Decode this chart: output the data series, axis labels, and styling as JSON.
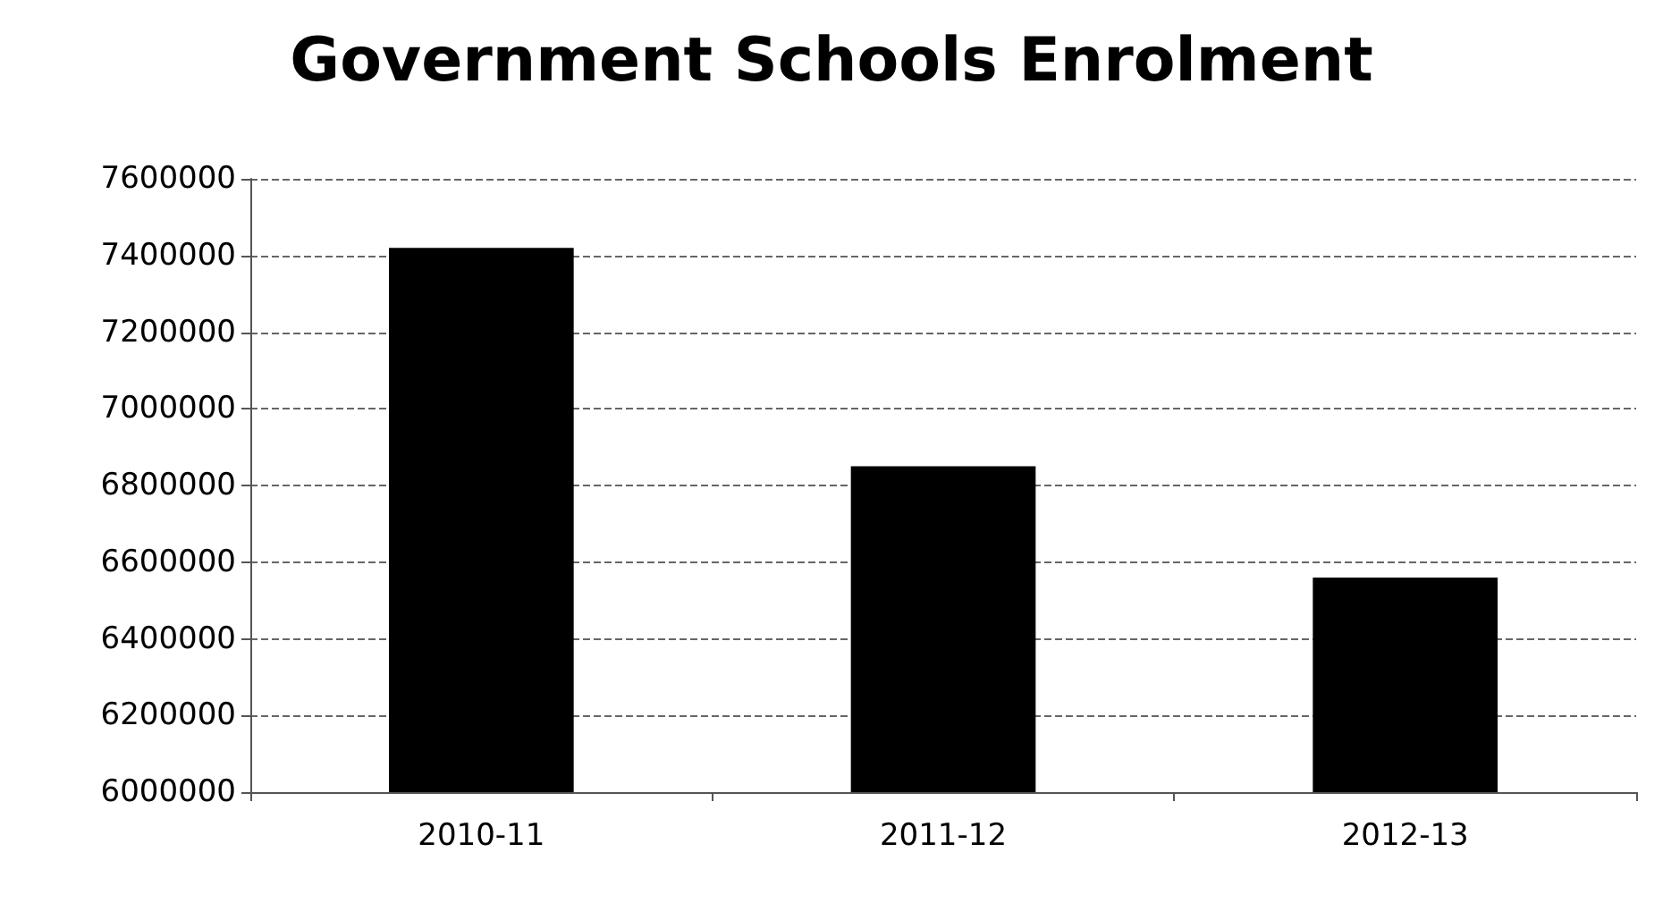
{
  "chart_data": {
    "type": "bar",
    "title": "Government Schools Enrolment",
    "categories": [
      "2010-11",
      "2011-12",
      "2012-13"
    ],
    "values": [
      7420000,
      6850000,
      6560000
    ],
    "color": "#000000",
    "ylim": [
      6000000,
      7600000
    ],
    "yticks": [
      6000000,
      6200000,
      6400000,
      6600000,
      6800000,
      7000000,
      7200000,
      7400000,
      7600000
    ],
    "grid": "y"
  }
}
